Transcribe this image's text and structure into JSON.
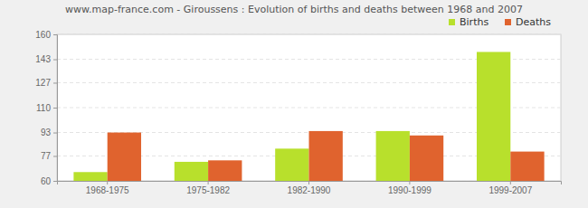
{
  "chart_data": {
    "type": "bar",
    "title": "www.map-france.com - Giroussens : Evolution of births and deaths between 1968 and 2007",
    "categories": [
      "1968-1975",
      "1975-1982",
      "1982-1990",
      "1990-1999",
      "1999-2007"
    ],
    "series": [
      {
        "name": "Births",
        "color": "#b8e02c",
        "values": [
          66,
          73,
          82,
          94,
          148
        ]
      },
      {
        "name": "Deaths",
        "color": "#e0632e",
        "values": [
          93,
          74,
          94,
          91,
          80
        ]
      }
    ],
    "ylim": [
      60,
      160
    ],
    "yticks": [
      60,
      77,
      93,
      110,
      127,
      143,
      160
    ],
    "grid": true,
    "legend": "top-right"
  }
}
